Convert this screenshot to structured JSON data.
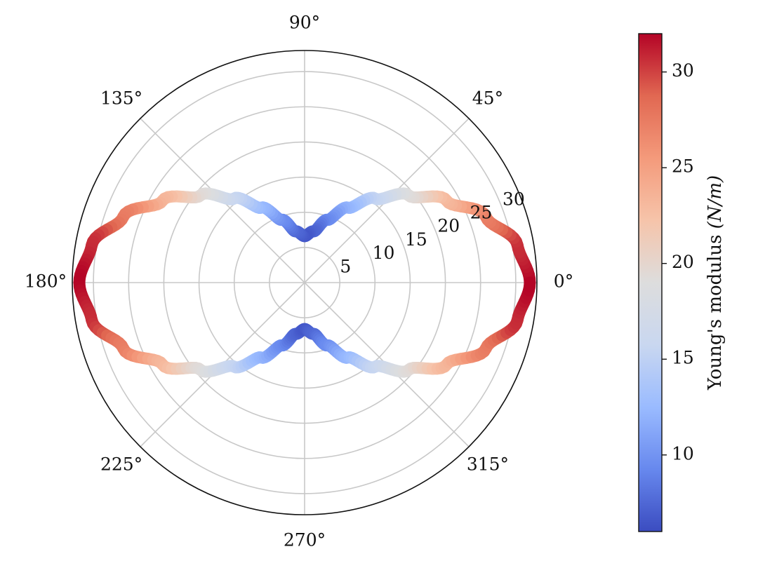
{
  "chart_data": {
    "type": "polar",
    "title": "",
    "theta_tick_labels": [
      "0°",
      "45°",
      "90°",
      "135°",
      "180°",
      "225°",
      "270°",
      "315°"
    ],
    "theta_tick_degrees": [
      0,
      45,
      90,
      135,
      180,
      225,
      270,
      315
    ],
    "r_tick_labels": [
      "5",
      "10",
      "15",
      "20",
      "25",
      "30"
    ],
    "r_tick_values": [
      5,
      10,
      15,
      20,
      25,
      30
    ],
    "r_label_angle_deg": 22.5,
    "rlim": [
      0,
      33
    ],
    "grid": true,
    "series": [
      {
        "theta_deg": [
          0,
          10,
          20,
          30,
          40,
          50,
          60,
          70,
          80,
          90,
          100,
          110,
          120,
          130,
          140,
          150,
          160,
          170,
          180,
          190,
          200,
          210,
          220,
          230,
          240,
          250,
          260,
          270,
          280,
          290,
          300,
          310,
          320,
          330,
          340,
          350,
          360
        ],
        "r": [
          32.0,
          30.7,
          27.4,
          23.3,
          19.3,
          15.6,
          12.3,
          9.5,
          7.4,
          6.6,
          7.4,
          9.5,
          12.3,
          15.6,
          19.3,
          23.3,
          27.4,
          30.7,
          32.0,
          30.7,
          27.4,
          23.3,
          19.3,
          15.6,
          12.3,
          9.5,
          7.4,
          6.6,
          7.4,
          9.5,
          12.3,
          15.6,
          19.3,
          23.3,
          27.4,
          30.7,
          32.0
        ],
        "color_value": "r"
      }
    ],
    "colorbar": {
      "label": "Young's modulus (N/m)",
      "label_variable_part": "(N/m)",
      "colormap": "coolwarm",
      "range": [
        6,
        32
      ],
      "tick_values": [
        10,
        15,
        20,
        25,
        30
      ],
      "tick_labels": [
        "10",
        "15",
        "20",
        "25",
        "30"
      ],
      "colormap_stops": [
        "#3b4cc0",
        "#6788ee",
        "#9abbff",
        "#c9d7f0",
        "#dddddd",
        "#f6c4aa",
        "#f49a7b",
        "#e16852",
        "#b40426"
      ]
    }
  }
}
